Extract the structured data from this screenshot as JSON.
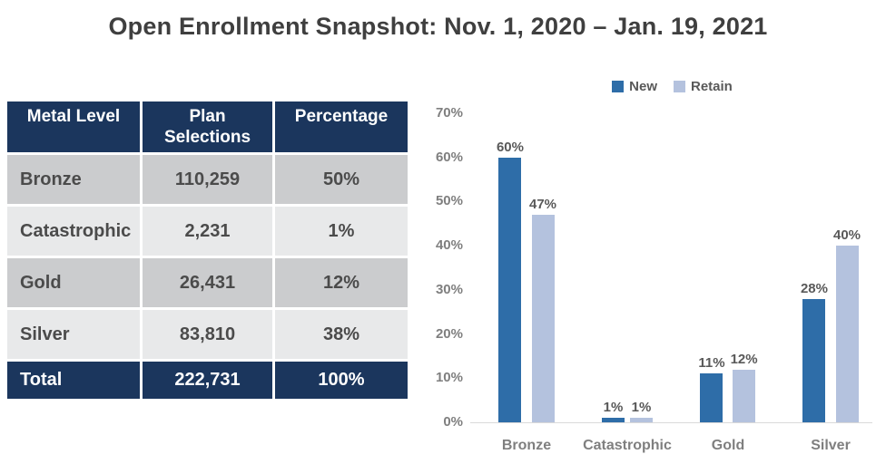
{
  "title": "Open Enrollment Snapshot: Nov. 1, 2020 – Jan. 19, 2021",
  "table": {
    "headers": [
      "Metal Level",
      "Plan Selections",
      "Percentage"
    ],
    "rows": [
      {
        "metal_level": "Bronze",
        "plan_selections": "110,259",
        "percentage": "50%"
      },
      {
        "metal_level": "Catastrophic",
        "plan_selections": "2,231",
        "percentage": "1%"
      },
      {
        "metal_level": "Gold",
        "plan_selections": "26,431",
        "percentage": "12%"
      },
      {
        "metal_level": "Silver",
        "plan_selections": "83,810",
        "percentage": "38%"
      }
    ],
    "total": {
      "metal_level": "Total",
      "plan_selections": "222,731",
      "percentage": "100%"
    }
  },
  "chart_data": {
    "type": "bar",
    "categories": [
      "Bronze",
      "Catastrophic",
      "Gold",
      "Silver"
    ],
    "series": [
      {
        "name": "New",
        "values": [
          60,
          1,
          11,
          28
        ]
      },
      {
        "name": "Retain",
        "values": [
          47,
          1,
          12,
          40
        ]
      }
    ],
    "ylim": [
      0,
      70
    ],
    "ytick_step": 10,
    "value_suffix": "%",
    "grid": false,
    "legend_position": "top",
    "colors": [
      "#2e6da8",
      "#b4c2de"
    ]
  },
  "colors": {
    "navy": "#1b365d",
    "row_dark": "#cbccce",
    "row_light": "#e8e9ea",
    "title_text": "#3f3f3f",
    "table_text": "#4b4b4b",
    "axis_text": "#7f7f7f",
    "data_label_text": "#595959"
  }
}
